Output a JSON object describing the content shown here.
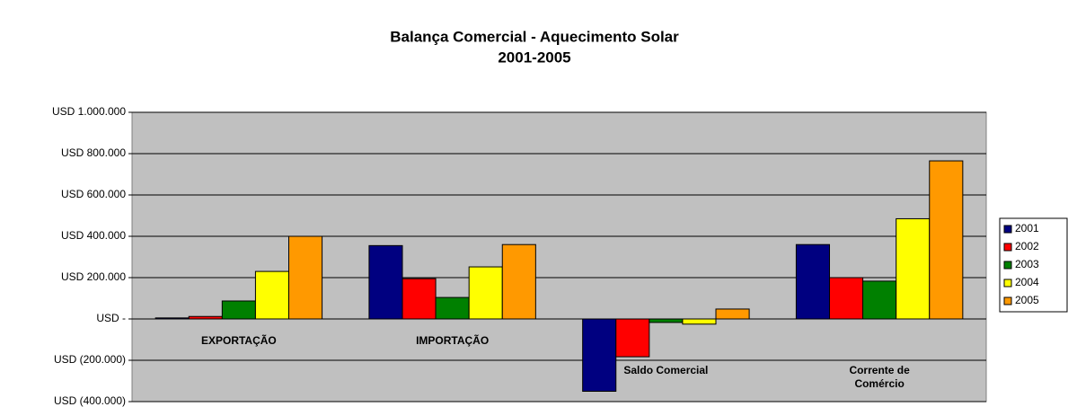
{
  "chart_data": {
    "type": "bar",
    "title": "Balança Comercial - Aquecimento Solar",
    "subtitle": "2001-2005",
    "categories": [
      "EXPORTAÇÃO",
      "IMPORTAÇÃO",
      "Saldo Comercial",
      "Corrente de Comércio"
    ],
    "series": [
      {
        "name": "2001",
        "color": "#000080",
        "values": [
          5000,
          355000,
          -350000,
          360000
        ]
      },
      {
        "name": "2002",
        "color": "#ff0000",
        "values": [
          12000,
          195000,
          -183000,
          200000
        ]
      },
      {
        "name": "2003",
        "color": "#008000",
        "values": [
          87000,
          104000,
          -17000,
          183000
        ]
      },
      {
        "name": "2004",
        "color": "#ffff00",
        "values": [
          230000,
          252000,
          -25000,
          485000
        ]
      },
      {
        "name": "2005",
        "color": "#ff9900",
        "values": [
          400000,
          360000,
          48000,
          765000
        ]
      }
    ],
    "ylim": [
      -400000,
      1000000
    ],
    "yticks": [
      {
        "value": -400000,
        "label": "USD (400.000)"
      },
      {
        "value": -200000,
        "label": "USD (200.000)"
      },
      {
        "value": 0,
        "label": "USD -"
      },
      {
        "value": 200000,
        "label": "USD 200.000"
      },
      {
        "value": 400000,
        "label": "USD 400.000"
      },
      {
        "value": 600000,
        "label": "USD 600.000"
      },
      {
        "value": 800000,
        "label": "USD 800.000"
      },
      {
        "value": 1000000,
        "label": "USD 1.000.000"
      }
    ],
    "grid": true,
    "legend": "right"
  }
}
